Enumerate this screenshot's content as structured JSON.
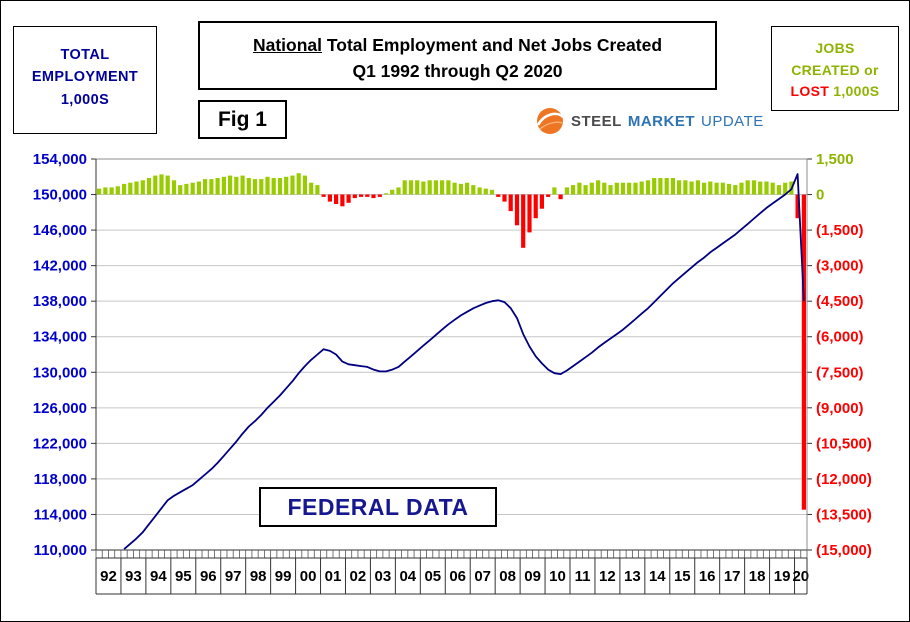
{
  "header": {
    "left_box": {
      "line1": "TOTAL",
      "line2": "EMPLOYMENT",
      "line3": "1,000S"
    },
    "title": {
      "line1_emph": "National",
      "line1_rest": " Total Employment and Net Jobs Created",
      "line2": "Q1 1992 through Q2 2020"
    },
    "fig_label": "Fig 1",
    "logo": {
      "steel": "STEEL",
      "market": "MARKET",
      "update": "UPDATE"
    },
    "right_box": {
      "line1": "JOBS",
      "line2": "CREATED or",
      "line3_red": "LOST",
      "line3_green": "1,000S"
    }
  },
  "annotations": {
    "federal": "FEDERAL DATA"
  },
  "colors": {
    "employment_line": "#000080",
    "bar_positive": "#99CC00",
    "bar_negative": "#FF0000",
    "left_axis_label": "#0000CD",
    "right_axis_positive": "#8DB400",
    "right_axis_negative": "#FF0000",
    "gridline": "#C6C6C6",
    "axis_frame": "#8C8C8C",
    "axis_dark": "#333333",
    "year_label": "#000000"
  },
  "chart_data": {
    "type": "line+bar",
    "title": "National Total Employment and Net Jobs Created",
    "subtitle": "Q1 1992 through Q2 2020",
    "x_unit": "quarter",
    "x_labels": [
      "92",
      "93",
      "94",
      "95",
      "96",
      "97",
      "98",
      "99",
      "00",
      "01",
      "02",
      "03",
      "04",
      "05",
      "06",
      "07",
      "08",
      "09",
      "10",
      "11",
      "12",
      "13",
      "14",
      "15",
      "16",
      "17",
      "18",
      "19",
      "20"
    ],
    "quarters_per_year": 4,
    "left_axis": {
      "title": "Total Employment 1,000s",
      "min": 110000,
      "max": 154000,
      "step": 4000,
      "tick_labels": [
        "154,000",
        "150,000",
        "146,000",
        "142,000",
        "138,000",
        "134,000",
        "130,000",
        "126,000",
        "122,000",
        "118,000",
        "114,000",
        "110,000"
      ]
    },
    "right_axis": {
      "title": "Jobs Created or Lost 1,000s",
      "min": -15000,
      "max": 1500,
      "step": 1500,
      "tick_labels": [
        "1,500",
        "0",
        "(1,500)",
        "(3,000)",
        "(4,500)",
        "(6,000)",
        "(7,500)",
        "(9,000)",
        "(10,500)",
        "(12,000)",
        "(13,500)",
        "(15,000)"
      ]
    },
    "series": [
      {
        "name": "Total Employment (1,000s)",
        "type": "line",
        "axis": "left",
        "values": [
          108600,
          108900,
          109200,
          109600,
          110100,
          110700,
          111300,
          112000,
          112900,
          113800,
          114700,
          115600,
          116100,
          116500,
          116900,
          117300,
          117900,
          118500,
          119100,
          119800,
          120600,
          121400,
          122200,
          123100,
          123900,
          124500,
          125200,
          126000,
          126700,
          127400,
          128200,
          129000,
          129900,
          130700,
          131400,
          132000,
          132600,
          132400,
          132000,
          131200,
          130900,
          130800,
          130700,
          130600,
          130300,
          130100,
          130100,
          130300,
          130600,
          131200,
          131800,
          132400,
          133000,
          133600,
          134200,
          134800,
          135400,
          135900,
          136400,
          136800,
          137200,
          137500,
          137800,
          138000,
          138100,
          137900,
          137200,
          136100,
          134300,
          132900,
          131800,
          131000,
          130300,
          129900,
          129800,
          130200,
          130700,
          131200,
          131700,
          132200,
          132800,
          133300,
          133800,
          134300,
          134800,
          135400,
          136000,
          136600,
          137200,
          137900,
          138600,
          139300,
          140000,
          140600,
          141200,
          141800,
          142400,
          142900,
          143500,
          144000,
          144500,
          145000,
          145500,
          146100,
          146700,
          147300,
          147900,
          148500,
          149000,
          149500,
          150000,
          150600,
          152300,
          138000
        ]
      },
      {
        "name": "Net Jobs Created (1,000s)",
        "type": "bar",
        "axis": "right",
        "values": [
          250,
          300,
          300,
          350,
          450,
          500,
          550,
          600,
          700,
          800,
          850,
          800,
          600,
          400,
          450,
          500,
          550,
          650,
          650,
          700,
          750,
          800,
          750,
          800,
          700,
          650,
          650,
          750,
          700,
          700,
          750,
          800,
          900,
          800,
          500,
          400,
          -100,
          -300,
          -400,
          -500,
          -350,
          -150,
          -100,
          -100,
          -150,
          -100,
          50,
          200,
          300,
          600,
          600,
          600,
          550,
          600,
          600,
          600,
          600,
          500,
          450,
          500,
          400,
          300,
          250,
          200,
          -100,
          -300,
          -700,
          -1300,
          -2250,
          -1600,
          -1000,
          -600,
          -100,
          300,
          -200,
          300,
          400,
          500,
          400,
          500,
          600,
          500,
          400,
          500,
          500,
          500,
          500,
          550,
          600,
          700,
          700,
          700,
          700,
          600,
          600,
          550,
          600,
          500,
          550,
          500,
          500,
          450,
          400,
          500,
          600,
          600,
          550,
          550,
          500,
          400,
          500,
          550,
          -1000,
          -13300
        ]
      }
    ]
  }
}
